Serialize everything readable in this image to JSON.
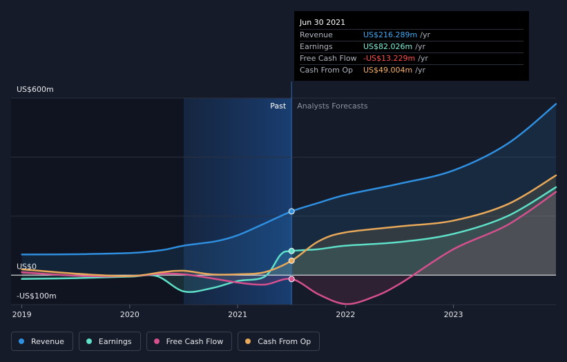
{
  "tooltip": {
    "date": "Jun 30 2021",
    "rows": [
      {
        "name": "Revenue",
        "value": "US$216.289m",
        "unit": "/yr",
        "color": "#3fa9f5"
      },
      {
        "name": "Earnings",
        "value": "US$82.026m",
        "unit": "/yr",
        "color": "#7ff3d8"
      },
      {
        "name": "Free Cash Flow",
        "value": "-US$13.229m",
        "unit": "/yr",
        "color": "#ff4d4d"
      },
      {
        "name": "Cash From Op",
        "value": "US$49.004m",
        "unit": "/yr",
        "color": "#f7b267"
      }
    ]
  },
  "legend": [
    {
      "name": "Revenue",
      "color": "#2f8fe0"
    },
    {
      "name": "Earnings",
      "color": "#5fe0c8"
    },
    {
      "name": "Free Cash Flow",
      "color": "#d6508e"
    },
    {
      "name": "Cash From Op",
      "color": "#e9a95a"
    }
  ],
  "chart_data": {
    "type": "line",
    "ylabels": {
      "top": "US$600m",
      "zero": "US$0",
      "bottom": "-US$100m"
    },
    "ylim": [
      -100,
      600
    ],
    "xlim": [
      2018.9,
      2023.95
    ],
    "xticks": [
      {
        "label": "2019",
        "value": 2019
      },
      {
        "label": "2020",
        "value": 2020
      },
      {
        "label": "2021",
        "value": 2021
      },
      {
        "label": "2022",
        "value": 2022
      },
      {
        "label": "2023",
        "value": 2023
      }
    ],
    "past_label": "Past",
    "forecast_label": "Analysts Forecasts",
    "past_start": 2020.5,
    "divider": 2021.5,
    "series": [
      {
        "name": "Revenue",
        "color": "#2f8fe0",
        "points": [
          [
            2019,
            70
          ],
          [
            2019.5,
            71
          ],
          [
            2020,
            75
          ],
          [
            2020.3,
            85
          ],
          [
            2020.5,
            100
          ],
          [
            2020.8,
            115
          ],
          [
            2021,
            135
          ],
          [
            2021.25,
            175
          ],
          [
            2021.5,
            216.3
          ],
          [
            2021.75,
            245
          ],
          [
            2022,
            272
          ],
          [
            2022.5,
            310
          ],
          [
            2023,
            355
          ],
          [
            2023.5,
            445
          ],
          [
            2023.95,
            580
          ]
        ]
      },
      {
        "name": "Earnings",
        "color": "#5fe0c8",
        "points": [
          [
            2019,
            -13
          ],
          [
            2019.5,
            -10
          ],
          [
            2020,
            -5
          ],
          [
            2020.25,
            -3
          ],
          [
            2020.5,
            -55
          ],
          [
            2020.75,
            -45
          ],
          [
            2021,
            -20
          ],
          [
            2021.25,
            -5
          ],
          [
            2021.4,
            70
          ],
          [
            2021.5,
            82
          ],
          [
            2021.75,
            88
          ],
          [
            2022,
            100
          ],
          [
            2022.5,
            112
          ],
          [
            2023,
            140
          ],
          [
            2023.5,
            200
          ],
          [
            2023.95,
            298
          ]
        ]
      },
      {
        "name": "Free Cash Flow",
        "color": "#d6508e",
        "points": [
          [
            2019,
            10
          ],
          [
            2019.5,
            -2
          ],
          [
            2020,
            -3
          ],
          [
            2020.3,
            5
          ],
          [
            2020.5,
            3
          ],
          [
            2020.75,
            -10
          ],
          [
            2021,
            -25
          ],
          [
            2021.25,
            -32
          ],
          [
            2021.5,
            -13.2
          ],
          [
            2021.75,
            -65
          ],
          [
            2022,
            -98
          ],
          [
            2022.25,
            -75
          ],
          [
            2022.5,
            -30
          ],
          [
            2023,
            88
          ],
          [
            2023.5,
            170
          ],
          [
            2023.95,
            282
          ]
        ]
      },
      {
        "name": "Cash From Op",
        "color": "#e9a95a",
        "points": [
          [
            2019,
            20
          ],
          [
            2019.5,
            5
          ],
          [
            2020,
            -3
          ],
          [
            2020.3,
            10
          ],
          [
            2020.5,
            15
          ],
          [
            2020.75,
            3
          ],
          [
            2021,
            3
          ],
          [
            2021.25,
            10
          ],
          [
            2021.5,
            49
          ],
          [
            2021.75,
            115
          ],
          [
            2022,
            145
          ],
          [
            2022.5,
            165
          ],
          [
            2023,
            185
          ],
          [
            2023.5,
            240
          ],
          [
            2023.95,
            338
          ]
        ]
      }
    ]
  }
}
